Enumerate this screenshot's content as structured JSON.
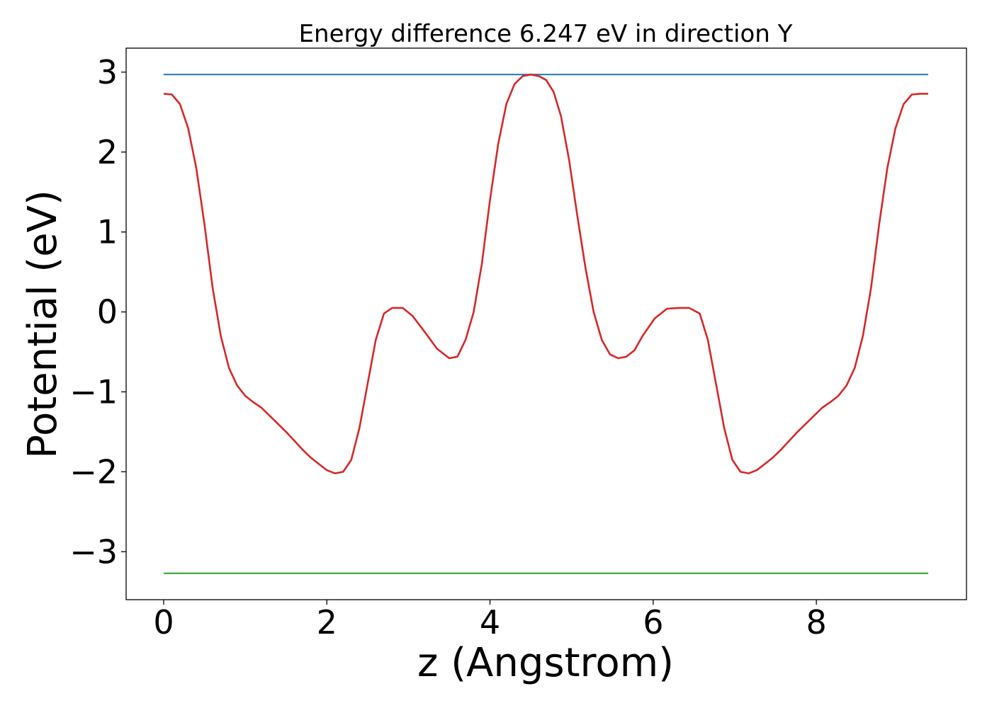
{
  "chart_data": {
    "type": "line",
    "title": "Energy difference 6.247 eV in direction Y",
    "xlabel": "z (Angstrom)",
    "ylabel": "Potential (eV)",
    "xlim": [
      -0.46,
      9.84
    ],
    "ylim": [
      -3.6,
      3.3
    ],
    "xticks": [
      0,
      2,
      4,
      6,
      8
    ],
    "xtick_labels": [
      "0",
      "2",
      "4",
      "6",
      "8"
    ],
    "yticks": [
      3,
      2,
      1,
      0,
      -1,
      -2,
      -3
    ],
    "ytick_labels": [
      "3",
      "2",
      "1",
      "0",
      "−1",
      "−2",
      "−3"
    ],
    "grid": false,
    "series": [
      {
        "color": "#1f77b4",
        "x": [
          0,
          9.37
        ],
        "y": [
          2.97,
          2.97
        ]
      },
      {
        "color": "#2ca02c",
        "x": [
          0,
          9.37
        ],
        "y": [
          -3.27,
          -3.27
        ]
      },
      {
        "color": "#d62728",
        "x": [
          0,
          0.1,
          0.2,
          0.3,
          0.4,
          0.5,
          0.6,
          0.7,
          0.8,
          0.9,
          1.0,
          1.1,
          1.2,
          1.3,
          1.4,
          1.5,
          1.6,
          1.7,
          1.8,
          1.9,
          2.0,
          2.1,
          2.2,
          2.3,
          2.4,
          2.5,
          2.6,
          2.7,
          2.8,
          2.93,
          3.05,
          3.2,
          3.35,
          3.5,
          3.6,
          3.7,
          3.8,
          3.9,
          4.0,
          4.1,
          4.2,
          4.3,
          4.4,
          4.5,
          4.6,
          4.69,
          4.78,
          4.87,
          4.97,
          5.07,
          5.17,
          5.27,
          5.37,
          5.47,
          5.57,
          5.67,
          5.77,
          5.87,
          6.02,
          6.17,
          6.32,
          6.44,
          6.57,
          6.67,
          6.77,
          6.87,
          6.97,
          7.07,
          7.17,
          7.27,
          7.37,
          7.47,
          7.57,
          7.67,
          7.77,
          7.87,
          7.97,
          8.07,
          8.17,
          8.27,
          8.37,
          8.47,
          8.57,
          8.67,
          8.77,
          8.87,
          8.97,
          9.07,
          9.17,
          9.27,
          9.37
        ],
        "y": [
          2.73,
          2.72,
          2.6,
          2.3,
          1.8,
          1.1,
          0.3,
          -0.3,
          -0.7,
          -0.92,
          -1.05,
          -1.13,
          -1.2,
          -1.3,
          -1.4,
          -1.5,
          -1.61,
          -1.72,
          -1.82,
          -1.9,
          -1.98,
          -2.02,
          -2.0,
          -1.85,
          -1.45,
          -0.9,
          -0.35,
          -0.02,
          0.05,
          0.05,
          -0.05,
          -0.25,
          -0.46,
          -0.58,
          -0.56,
          -0.35,
          0.0,
          0.6,
          1.4,
          2.1,
          2.6,
          2.85,
          2.95,
          2.97,
          2.95,
          2.9,
          2.75,
          2.45,
          1.9,
          1.2,
          0.55,
          0.0,
          -0.35,
          -0.53,
          -0.58,
          -0.56,
          -0.48,
          -0.3,
          -0.08,
          0.04,
          0.05,
          0.05,
          -0.02,
          -0.35,
          -0.9,
          -1.45,
          -1.85,
          -2.0,
          -2.02,
          -1.98,
          -1.9,
          -1.82,
          -1.72,
          -1.61,
          -1.5,
          -1.4,
          -1.3,
          -1.2,
          -1.13,
          -1.05,
          -0.92,
          -0.7,
          -0.3,
          0.3,
          1.1,
          1.8,
          2.3,
          2.6,
          2.72,
          2.73,
          2.73
        ]
      }
    ]
  }
}
